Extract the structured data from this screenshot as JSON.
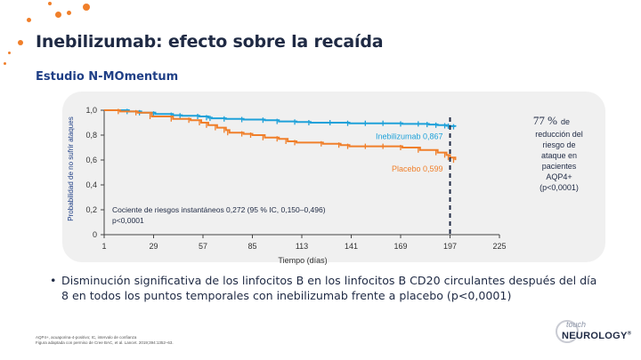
{
  "title": "Inebilizumab: efecto sobre la recaída",
  "subtitle": "Estudio N-MOmentum",
  "chart_data": {
    "type": "line",
    "ylabel": "Probabilidad de no sufrir ataques",
    "xlabel": "Tiempo (días)",
    "xticks": [
      1,
      29,
      57,
      85,
      113,
      141,
      169,
      197,
      225
    ],
    "yticks": [
      "0",
      "0,2",
      "0,4",
      "0,6",
      "0,8",
      "1,0"
    ],
    "xlim": [
      1,
      225
    ],
    "ylim": [
      0,
      1
    ],
    "series": [
      {
        "name": "Inebilizumab 0,867",
        "color": "#1ea1d9",
        "x": [
          1,
          15,
          22,
          30,
          40,
          45,
          55,
          60,
          62,
          70,
          80,
          92,
          100,
          110,
          118,
          130,
          140,
          150,
          160,
          170,
          180,
          185,
          190,
          195,
          197,
          200
        ],
        "y": [
          1.0,
          0.99,
          0.98,
          0.97,
          0.96,
          0.955,
          0.95,
          0.94,
          0.935,
          0.93,
          0.925,
          0.92,
          0.91,
          0.905,
          0.9,
          0.9,
          0.895,
          0.895,
          0.895,
          0.89,
          0.89,
          0.885,
          0.88,
          0.875,
          0.872,
          0.867
        ]
      },
      {
        "name": "Placebo 0,599",
        "color": "#f07f2a",
        "x": [
          1,
          10,
          20,
          28,
          40,
          50,
          56,
          60,
          65,
          70,
          72,
          80,
          85,
          92,
          100,
          105,
          110,
          125,
          135,
          140,
          150,
          160,
          170,
          180,
          190,
          195,
          197,
          200
        ],
        "y": [
          1.0,
          0.99,
          0.98,
          0.95,
          0.93,
          0.92,
          0.9,
          0.88,
          0.86,
          0.84,
          0.82,
          0.81,
          0.8,
          0.78,
          0.77,
          0.75,
          0.74,
          0.73,
          0.72,
          0.71,
          0.71,
          0.71,
          0.7,
          0.68,
          0.66,
          0.64,
          0.62,
          0.599
        ]
      }
    ],
    "annotations": {
      "hazard": "Cociente de riesgos instantáneos 0,272 (95 % IC, 0,150–0,496)",
      "hazard_p": "p<0,0001",
      "reduction_pct": "77 %",
      "reduction_de": "de",
      "reduction_lines": [
        "reducción del",
        "riesgo de",
        "ataque en",
        "pacientes",
        "AQP4+",
        "(p<0,0001)"
      ]
    }
  },
  "bullet": "Disminución significativa de los linfocitos B en los linfocitos B CD20 circulantes después del día 8 en todos los puntos temporales con inebilizumab frente a placebo (p<0,0001)",
  "bullet_marker": "•",
  "footnote": [
    "AQP4+, acuaporina-4-positivo; IC, intervalo de confianza",
    "Figura adaptada con permiso de Cree BAC, et al. Lancet. 2019;394:1352–63."
  ],
  "logo": {
    "top": "touch",
    "bottom": "NEUROLOGY",
    "mark": "®"
  }
}
